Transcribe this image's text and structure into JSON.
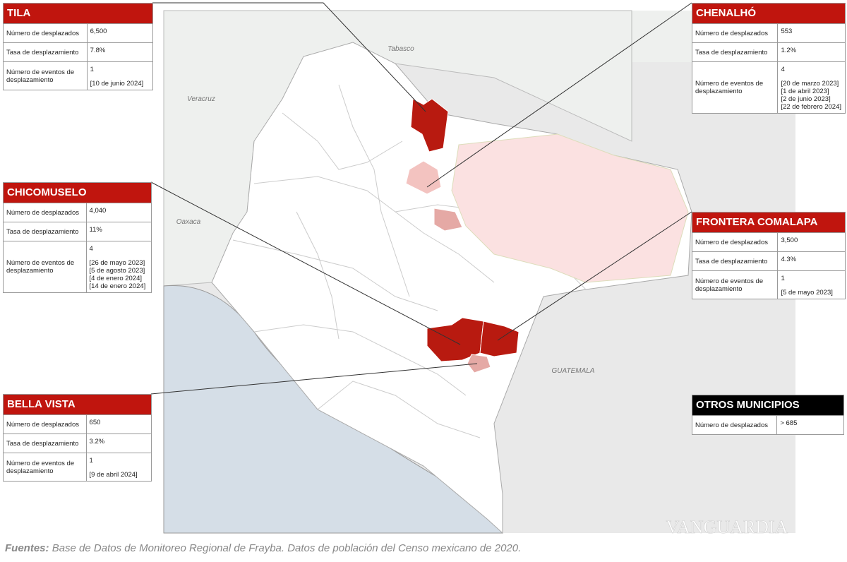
{
  "map": {
    "labels": [
      "Tabasco",
      "Veracruz",
      "Oaxaca",
      "GUATEMALA"
    ],
    "watermark": "VANGUARDIA"
  },
  "panels": [
    {
      "title": "TILA",
      "rows": [
        {
          "label": "Número de desplazados",
          "value": "6,500"
        },
        {
          "label": "Tasa de desplazamiento",
          "value": "7.8%"
        },
        {
          "label": "Número de eventos de desplazamiento",
          "value": "1",
          "dates": [
            "[10 de junio 2024]"
          ]
        }
      ]
    },
    {
      "title": "CHENALHÓ",
      "rows": [
        {
          "label": "Número de desplazados",
          "value": "553"
        },
        {
          "label": "Tasa de desplazamiento",
          "value": "1.2%"
        },
        {
          "label": "Número de eventos de desplazamiento",
          "value": "4",
          "dates": [
            "[20 de marzo 2023]",
            "[1 de abril 2023]",
            "[2 de junio 2023]",
            "[22 de febrero 2024]"
          ]
        }
      ]
    },
    {
      "title": "CHICOMUSELO",
      "rows": [
        {
          "label": "Número de desplazados",
          "value": "4,040"
        },
        {
          "label": "Tasa de desplazamiento",
          "value": "11%"
        },
        {
          "label": "Número de eventos de desplazamiento",
          "value": "4",
          "dates": [
            "[26 de mayo 2023]",
            "[5 de agosto 2023]",
            "[4 de enero 2024]",
            "[14 de enero 2024]"
          ]
        }
      ]
    },
    {
      "title": "FRONTERA COMALAPA",
      "rows": [
        {
          "label": "Número de desplazados",
          "value": "3,500"
        },
        {
          "label": "Tasa de desplazamiento",
          "value": "4.3%"
        },
        {
          "label": "Número de eventos de desplazamiento",
          "value": "1",
          "dates": [
            "[5 de mayo 2023]"
          ]
        }
      ]
    },
    {
      "title": "BELLA VISTA",
      "rows": [
        {
          "label": "Número de desplazados",
          "value": "650"
        },
        {
          "label": "Tasa de desplazamiento",
          "value": "3.2%"
        },
        {
          "label": "Número de eventos de desplazamiento",
          "value": "1",
          "dates": [
            "[9 de abril 2024]"
          ]
        }
      ]
    },
    {
      "title": "OTROS MUNICIPIOS",
      "rows": [
        {
          "label": "Número de desplazados",
          "value": "> 685"
        }
      ]
    }
  ],
  "source": {
    "label": "Fuentes:",
    "text": "Base de Datos de Monitoreo Regional de Frayba. Datos de población del Censo mexicano de 2020."
  }
}
